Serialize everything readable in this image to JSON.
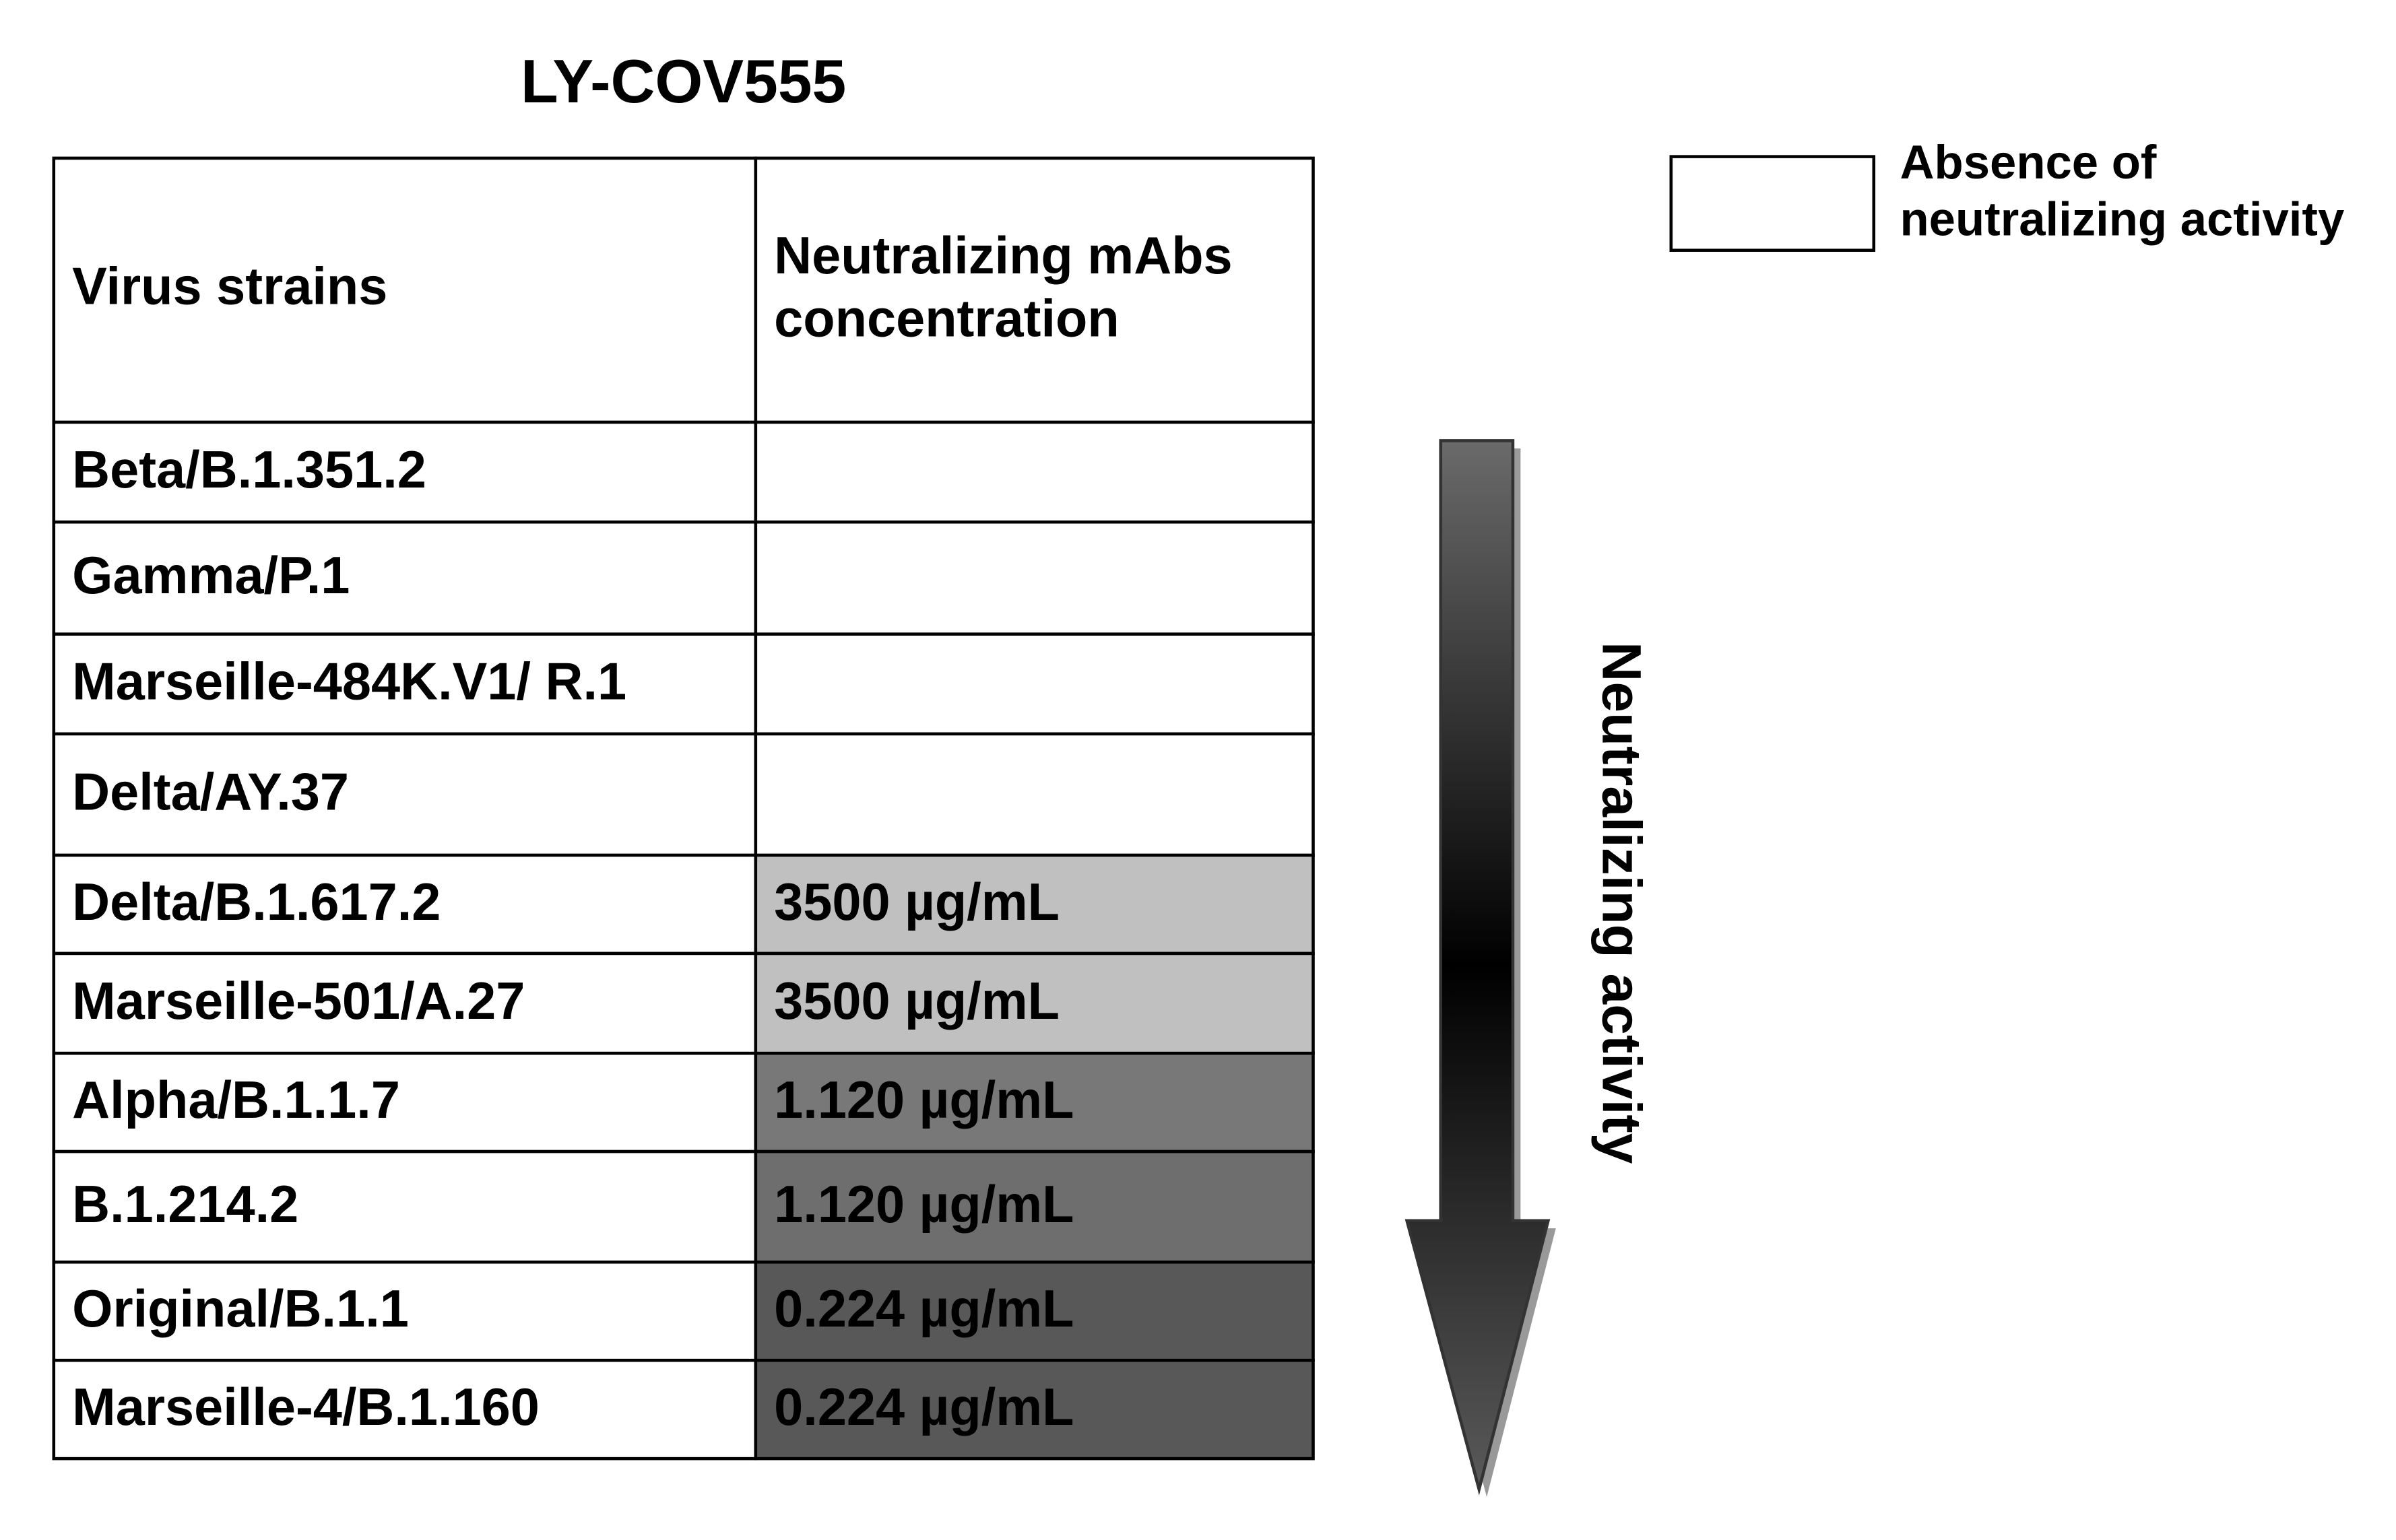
{
  "title": "LY-COV555",
  "table": {
    "header": [
      "Virus strains",
      [
        "Neutralizing mAbs",
        "concentration"
      ]
    ],
    "rows": [
      {
        "strain": "Beta/B.1.351.2"
      },
      {
        "strain": "Gamma/P.1"
      },
      {
        "strain": "Marseille-484K.V1/ R.1"
      },
      {
        "strain": "Delta/AY.37"
      },
      {
        "strain": "Delta/B.1.617.2",
        "concentration": "3500 µg/mL",
        "fill": "#c0c0c0"
      },
      {
        "strain": "Marseille-501/A.27",
        "concentration": "3500 µg/mL",
        "fill": "#c0c0c0"
      },
      {
        "strain": "Alpha/B.1.1.7",
        "concentration": "1.120 µg/mL",
        "fill": "#787878"
      },
      {
        "strain": "B.1.214.2",
        "concentration": "1.120 µg/mL",
        "fill": "#6e6e6e"
      },
      {
        "strain": "Original/B.1.1",
        "concentration": "0.224 µg/mL",
        "fill": "#585858"
      },
      {
        "strain": "Marseille-4/B.1.160",
        "concentration": "0.224 µg/mL",
        "fill": "#585858"
      }
    ]
  },
  "legend": {
    "label": [
      "Absence of",
      "neutralizing activity"
    ]
  },
  "arrow_label": "Neutralizing activity"
}
